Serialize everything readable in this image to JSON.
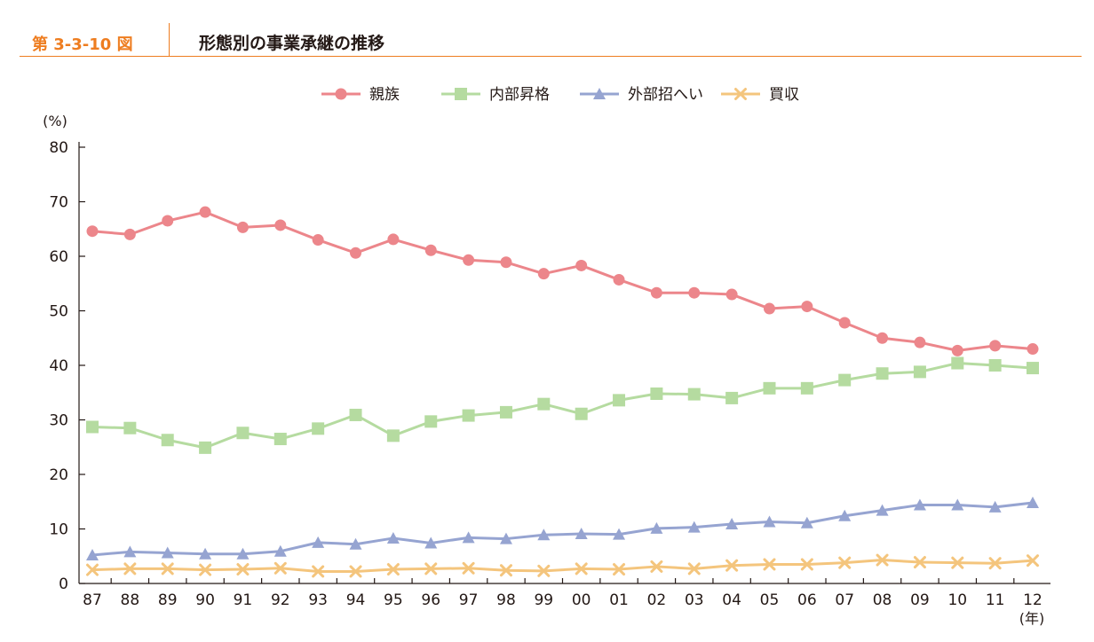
{
  "figure": {
    "label": "第 3-3-10 図",
    "title": "形態別の事業承継の推移"
  },
  "colors": {
    "accent": "#ee7d20",
    "axis": "#231815"
  },
  "chart_data": {
    "type": "line",
    "title": "",
    "xlabel": "(年)",
    "ylabel": "(%)",
    "ylim": [
      0,
      80
    ],
    "yticks": [
      0,
      10,
      20,
      30,
      40,
      50,
      60,
      70,
      80
    ],
    "grid": false,
    "legend_position": "top-center",
    "categories": [
      "87",
      "88",
      "89",
      "90",
      "91",
      "92",
      "93",
      "94",
      "95",
      "96",
      "97",
      "98",
      "99",
      "00",
      "01",
      "02",
      "03",
      "04",
      "05",
      "06",
      "07",
      "08",
      "09",
      "10",
      "11",
      "12"
    ],
    "series": [
      {
        "name": "親族",
        "marker": "circle",
        "color": "#ec868b",
        "values": [
          64.6,
          64.0,
          66.5,
          68.1,
          65.3,
          65.7,
          63.0,
          60.6,
          63.1,
          61.1,
          59.3,
          58.9,
          56.8,
          58.3,
          55.7,
          53.3,
          53.3,
          53.0,
          50.4,
          50.8,
          47.8,
          45.0,
          44.2,
          42.7,
          43.6,
          43.0
        ]
      },
      {
        "name": "内部昇格",
        "marker": "square",
        "color": "#b5dba0",
        "values": [
          28.7,
          28.5,
          26.3,
          24.9,
          27.6,
          26.5,
          28.4,
          30.9,
          27.1,
          29.7,
          30.8,
          31.4,
          32.9,
          31.1,
          33.6,
          34.8,
          34.7,
          34.0,
          35.8,
          35.8,
          37.3,
          38.5,
          38.8,
          40.4,
          40.0,
          39.5
        ]
      },
      {
        "name": "外部招へい",
        "marker": "triangle",
        "color": "#96a4d1",
        "values": [
          5.2,
          5.8,
          5.6,
          5.4,
          5.4,
          5.9,
          7.5,
          7.2,
          8.3,
          7.4,
          8.4,
          8.2,
          8.9,
          9.1,
          9.0,
          10.1,
          10.3,
          10.9,
          11.3,
          11.1,
          12.4,
          13.4,
          14.4,
          14.4,
          14.0,
          14.8
        ]
      },
      {
        "name": "買収",
        "marker": "cross",
        "color": "#f4c57d",
        "values": [
          2.5,
          2.7,
          2.7,
          2.5,
          2.6,
          2.8,
          2.2,
          2.2,
          2.6,
          2.7,
          2.8,
          2.4,
          2.3,
          2.7,
          2.6,
          3.1,
          2.7,
          3.3,
          3.5,
          3.5,
          3.8,
          4.3,
          3.9,
          3.8,
          3.7,
          4.2
        ]
      }
    ]
  }
}
